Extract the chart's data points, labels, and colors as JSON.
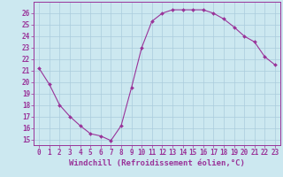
{
  "x": [
    0,
    1,
    2,
    3,
    4,
    5,
    6,
    7,
    8,
    9,
    10,
    11,
    12,
    13,
    14,
    15,
    16,
    17,
    18,
    19,
    20,
    21,
    22,
    23
  ],
  "y": [
    21.2,
    19.8,
    18.0,
    17.0,
    16.2,
    15.5,
    15.3,
    14.9,
    16.2,
    19.5,
    23.0,
    25.3,
    26.0,
    26.3,
    26.3,
    26.3,
    26.3,
    26.0,
    25.5,
    24.8,
    24.0,
    23.5,
    22.2,
    21.5
  ],
  "line_color": "#993399",
  "marker": "D",
  "marker_size": 2,
  "bg_color": "#cce8f0",
  "grid_color": "#aaccdd",
  "ylim": [
    14.5,
    27
  ],
  "xlim": [
    -0.5,
    23.5
  ],
  "yticks": [
    15,
    16,
    17,
    18,
    19,
    20,
    21,
    22,
    23,
    24,
    25,
    26
  ],
  "xticks": [
    0,
    1,
    2,
    3,
    4,
    5,
    6,
    7,
    8,
    9,
    10,
    11,
    12,
    13,
    14,
    15,
    16,
    17,
    18,
    19,
    20,
    21,
    22,
    23
  ],
  "xlabel": "Windchill (Refroidissement éolien,°C)",
  "font_color": "#993399",
  "tick_fontsize": 5.5,
  "label_fontsize": 6.5
}
